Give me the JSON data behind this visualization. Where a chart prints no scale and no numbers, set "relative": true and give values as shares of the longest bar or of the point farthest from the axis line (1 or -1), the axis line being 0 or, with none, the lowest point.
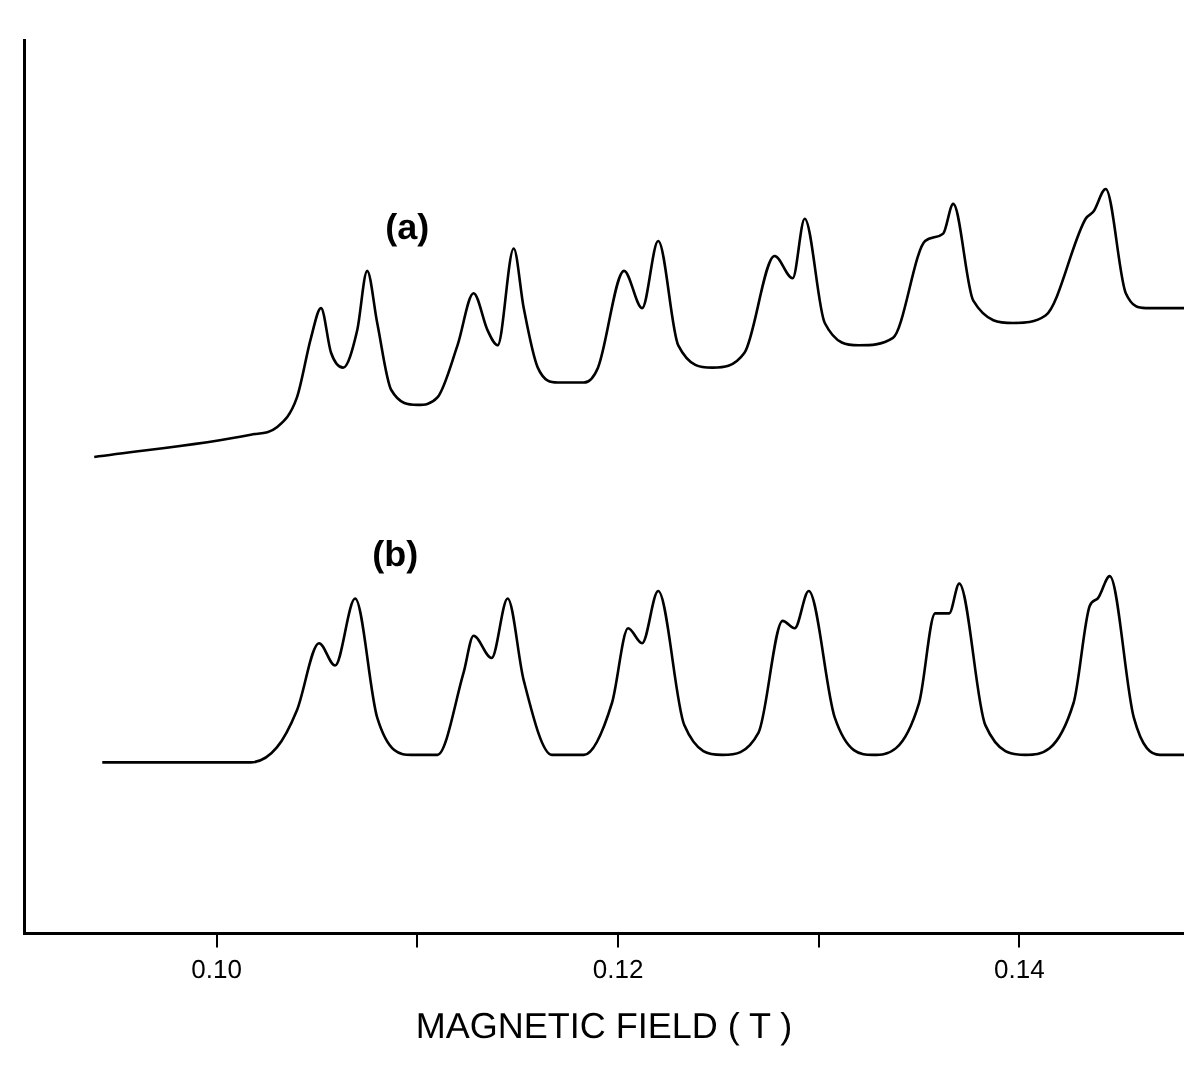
{
  "chart_data": {
    "type": "line",
    "xlabel": "MAGNETIC FIELD ( T )",
    "relative": true,
    "xlim": [
      0.0904,
      0.1482
    ],
    "xticks": [
      {
        "value": 0.1,
        "label": "0.10"
      },
      {
        "value": 0.11,
        "label": null
      },
      0.12,
      {
        "value": 0.13,
        "label": null
      },
      0.14
    ],
    "series": [
      {
        "name": "(a)",
        "color": "#000000",
        "x": [
          0.0939,
          0.1017,
          0.103,
          0.104,
          0.1047,
          0.1052,
          0.1057,
          0.1063,
          0.107,
          0.1075,
          0.108,
          0.1087,
          0.11,
          0.111,
          0.112,
          0.1128,
          0.1135,
          0.114,
          0.1148,
          0.1153,
          0.116,
          0.117,
          0.1183,
          0.119,
          0.1203,
          0.1212,
          0.122,
          0.123,
          0.1247,
          0.1263,
          0.1278,
          0.1287,
          0.1293,
          0.1303,
          0.132,
          0.1337,
          0.1353,
          0.1362,
          0.1367,
          0.1377,
          0.1397,
          0.1413,
          0.1433,
          0.1437,
          0.1443,
          0.1453,
          0.1463,
          0.1482
        ],
        "values": [
          0.64,
          0.67,
          0.68,
          0.72,
          0.8,
          0.84,
          0.78,
          0.76,
          0.81,
          0.89,
          0.82,
          0.73,
          0.71,
          0.72,
          0.79,
          0.86,
          0.81,
          0.79,
          0.92,
          0.84,
          0.76,
          0.74,
          0.74,
          0.76,
          0.89,
          0.84,
          0.93,
          0.79,
          0.76,
          0.78,
          0.91,
          0.88,
          0.96,
          0.82,
          0.79,
          0.8,
          0.93,
          0.94,
          0.98,
          0.85,
          0.82,
          0.83,
          0.96,
          0.97,
          1.0,
          0.86,
          0.84,
          0.84
        ]
      },
      {
        "name": "(b)",
        "color": "#000000",
        "x": [
          0.0943,
          0.1017,
          0.103,
          0.104,
          0.1051,
          0.1059,
          0.1069,
          0.108,
          0.1097,
          0.111,
          0.1123,
          0.1128,
          0.1137,
          0.1145,
          0.1153,
          0.1167,
          0.1183,
          0.1197,
          0.1205,
          0.1212,
          0.122,
          0.1233,
          0.1252,
          0.127,
          0.1282,
          0.1288,
          0.1295,
          0.1308,
          0.1327,
          0.135,
          0.1358,
          0.1365,
          0.137,
          0.1383,
          0.1403,
          0.1427,
          0.1435,
          0.1439,
          0.1445,
          0.1457,
          0.147,
          0.1482
        ],
        "values": [
          0.23,
          0.23,
          0.25,
          0.3,
          0.39,
          0.36,
          0.45,
          0.29,
          0.24,
          0.24,
          0.35,
          0.4,
          0.37,
          0.45,
          0.34,
          0.24,
          0.24,
          0.31,
          0.41,
          0.39,
          0.46,
          0.28,
          0.24,
          0.27,
          0.42,
          0.41,
          0.46,
          0.29,
          0.24,
          0.31,
          0.43,
          0.43,
          0.47,
          0.28,
          0.24,
          0.31,
          0.44,
          0.45,
          0.48,
          0.29,
          0.24,
          0.24
        ]
      }
    ]
  }
}
